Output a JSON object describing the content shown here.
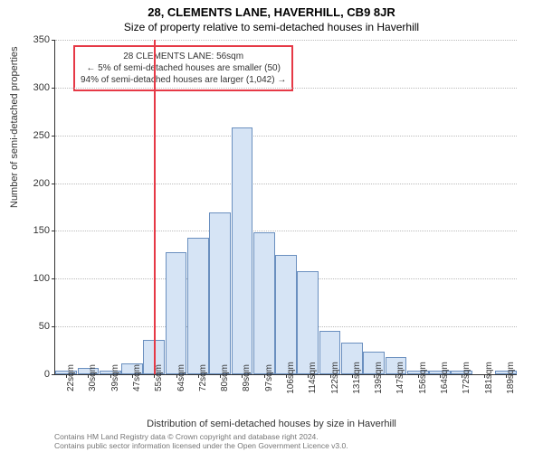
{
  "title": "28, CLEMENTS LANE, HAVERHILL, CB9 8JR",
  "subtitle": "Size of property relative to semi-detached houses in Haverhill",
  "yaxis_title": "Number of semi-detached properties",
  "xaxis_title": "Distribution of semi-detached houses by size in Haverhill",
  "chart": {
    "type": "histogram",
    "ylim": [
      0,
      350
    ],
    "ytick_step": 50,
    "bar_fill": "#d6e4f5",
    "bar_border": "#6a8fbf",
    "grid_color": "#bbbbbb",
    "axis_color": "#333333",
    "background_color": "#ffffff",
    "categories": [
      "22sqm",
      "30sqm",
      "39sqm",
      "47sqm",
      "55sqm",
      "64sqm",
      "72sqm",
      "80sqm",
      "89sqm",
      "97sqm",
      "106sqm",
      "114sqm",
      "122sqm",
      "131sqm",
      "139sqm",
      "147sqm",
      "156sqm",
      "164sqm",
      "172sqm",
      "181sqm",
      "189sqm"
    ],
    "values": [
      4,
      7,
      4,
      11,
      36,
      128,
      143,
      169,
      258,
      149,
      125,
      108,
      45,
      33,
      24,
      18,
      4,
      4,
      4,
      0,
      4
    ],
    "xlabel_show_every": 1
  },
  "marker": {
    "value_index": 4.5,
    "color": "#e63946"
  },
  "annotation": {
    "line1": "28 CLEMENTS LANE: 56sqm",
    "line2": "← 5% of semi-detached houses are smaller (50)",
    "line3": "94% of semi-detached houses are larger (1,042) →",
    "border_color": "#e63946",
    "fontsize": 10
  },
  "footer": {
    "line1": "Contains HM Land Registry data © Crown copyright and database right 2024.",
    "line2": "Contains public sector information licensed under the Open Government Licence v3.0."
  }
}
